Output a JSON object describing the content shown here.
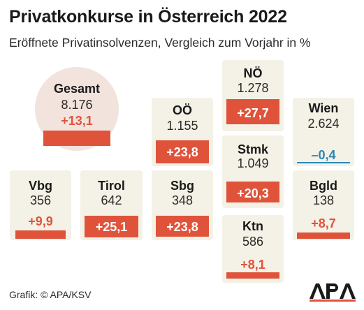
{
  "header": {
    "title": "Privatkonkurse in Österreich 2022",
    "subtitle": "Eröffnete Privatinsolvenzen, Vergleich zum Vorjahr in %"
  },
  "footer": {
    "source": "Grafik: © APA/KSV",
    "logo_text": "APA"
  },
  "colors": {
    "positive": "#e0533b",
    "negative": "#2a87b3",
    "card_background": "#f4f1e6",
    "total_background": "#f3e3dd"
  },
  "chart_data": {
    "type": "table",
    "title": "Privatkonkurse in Österreich 2022",
    "subtitle": "Eröffnete Privatinsolvenzen, Vergleich zum Vorjahr in %",
    "columns": [
      "Region",
      "Eröffnete Privatinsolvenzen",
      "Vergleich zum Vorjahr in %"
    ],
    "rows": [
      {
        "region": "Gesamt",
        "count": "8.176",
        "change": 13.1,
        "change_label": "+13,1"
      },
      {
        "region": "Vbg",
        "count": "356",
        "change": 9.9,
        "change_label": "+9,9"
      },
      {
        "region": "Tirol",
        "count": "642",
        "change": 25.1,
        "change_label": "+25,1"
      },
      {
        "region": "Sbg",
        "count": "348",
        "change": 23.8,
        "change_label": "+23,8"
      },
      {
        "region": "OÖ",
        "count": "1.155",
        "change": 23.8,
        "change_label": "+23,8"
      },
      {
        "region": "NÖ",
        "count": "1.278",
        "change": 27.7,
        "change_label": "+27,7"
      },
      {
        "region": "Stmk",
        "count": "1.049",
        "change": 20.3,
        "change_label": "+20,3"
      },
      {
        "region": "Ktn",
        "count": "586",
        "change": 8.1,
        "change_label": "+8,1"
      },
      {
        "region": "Wien",
        "count": "2.624",
        "change": -0.4,
        "change_label": "–0,4"
      },
      {
        "region": "Bgld",
        "count": "138",
        "change": 8.7,
        "change_label": "+8,7"
      }
    ]
  }
}
